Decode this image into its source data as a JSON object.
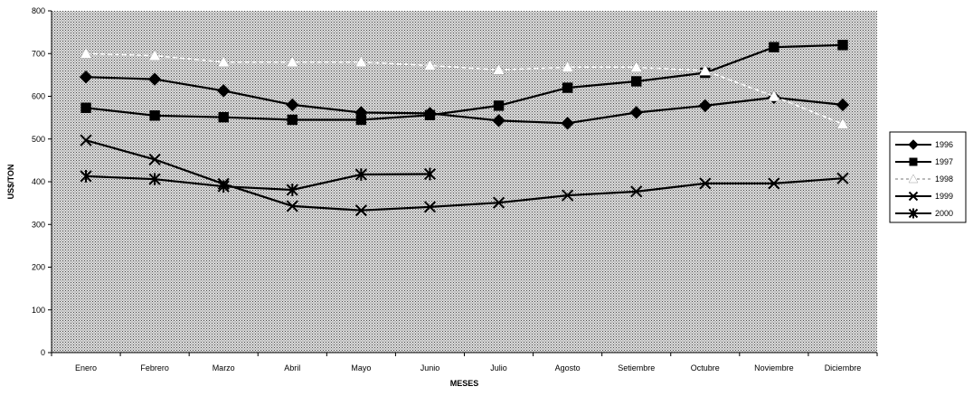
{
  "chart_data": {
    "type": "line",
    "title": "",
    "xlabel": "MESES",
    "ylabel": "US$/TON",
    "ylim": [
      0,
      800
    ],
    "yticks": [
      0,
      100,
      200,
      300,
      400,
      500,
      600,
      700,
      800
    ],
    "categories": [
      "Enero",
      "Febrero",
      "Marzo",
      "Abril",
      "Mayo",
      "Junio",
      "Julio",
      "Agosto",
      "Setiembre",
      "Octubre",
      "Noviembre",
      "Diciembre"
    ],
    "grid": false,
    "legend_position": "right",
    "series": [
      {
        "name": "1996",
        "marker": "diamond",
        "color": "#000000",
        "dashed": false,
        "values": [
          645,
          640,
          613,
          580,
          562,
          560,
          543,
          537,
          562,
          578,
          597,
          580
        ]
      },
      {
        "name": "1997",
        "marker": "square",
        "color": "#000000",
        "dashed": false,
        "values": [
          573,
          555,
          551,
          545,
          545,
          556,
          578,
          620,
          635,
          655,
          715,
          720
        ]
      },
      {
        "name": "1998",
        "marker": "triangle",
        "color": "#ffffff",
        "dashed": true,
        "values": [
          700,
          695,
          680,
          680,
          680,
          672,
          662,
          668,
          668,
          660,
          600,
          535
        ]
      },
      {
        "name": "1999",
        "marker": "x",
        "color": "#000000",
        "dashed": false,
        "values": [
          497,
          452,
          395,
          343,
          333,
          341,
          351,
          368,
          377,
          396,
          396,
          408
        ]
      },
      {
        "name": "2000",
        "marker": "star",
        "color": "#000000",
        "dashed": false,
        "values": [
          413,
          406,
          389,
          381,
          417,
          418,
          null,
          null,
          null,
          null,
          null,
          null
        ]
      }
    ]
  }
}
